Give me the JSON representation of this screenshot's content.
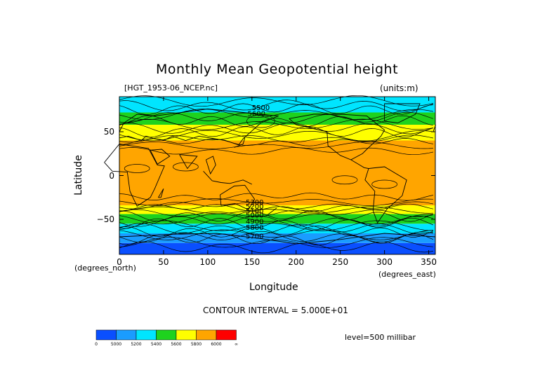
{
  "header": {
    "title": "Monthly Mean Geopotential height",
    "filename": "[HGT_1953-06_NCEP.nc]",
    "units": "(units:m)"
  },
  "chart_data": {
    "type": "heatmap",
    "title": "Monthly Mean Geopotential height",
    "xlabel": "Longitude",
    "ylabel": "Latitude",
    "x_unit_label": "(degrees_east)",
    "y_unit_label": "(degrees_north)",
    "xlim": [
      0,
      357.5
    ],
    "ylim": [
      -90,
      90
    ],
    "x_ticks": [
      0,
      50,
      100,
      150,
      200,
      250,
      300,
      350
    ],
    "y_ticks": [
      50,
      0,
      -50
    ],
    "contour_interval_text": "CONTOUR INTERVAL = 5.000E+01",
    "level_text": "level=500 millibar",
    "contour_labels": [
      "5500",
      "5600",
      "5300",
      "5200",
      "5100",
      "5000",
      "4900",
      "5800",
      "5700"
    ],
    "bands": [
      {
        "lat": [
          -90,
          -77
        ],
        "value_range": "0-5000",
        "color": "#0a4fff"
      },
      {
        "lat": [
          -77,
          -66
        ],
        "value_range": "5000-5200",
        "color": "#1a9cff"
      },
      {
        "lat": [
          -66,
          -55
        ],
        "value_range": "5200-5400",
        "color": "#00e5ff"
      },
      {
        "lat": [
          -55,
          -44
        ],
        "value_range": "5400-5600",
        "color": "#1ed21e"
      },
      {
        "lat": [
          -44,
          -34
        ],
        "value_range": "5600-5800",
        "color": "#ffff00"
      },
      {
        "lat": [
          -34,
          40
        ],
        "value_range": "5800-6000",
        "color": "#ffa500"
      },
      {
        "lat": [
          40,
          58
        ],
        "value_range": "5600-5800",
        "color": "#ffff00"
      },
      {
        "lat": [
          58,
          72
        ],
        "value_range": "5400-5600",
        "color": "#1ed21e"
      },
      {
        "lat": [
          72,
          90
        ],
        "value_range": "5200-5400",
        "color": "#00e5ff"
      }
    ],
    "colorbar": {
      "colors": [
        "#0a4fff",
        "#1a9cff",
        "#00e5ff",
        "#1ed21e",
        "#ffff00",
        "#ffa500",
        "#ff0000"
      ],
      "tick_labels": [
        "0",
        "5000",
        "5200",
        "5400",
        "5600",
        "5800",
        "6000",
        "∞"
      ]
    }
  }
}
